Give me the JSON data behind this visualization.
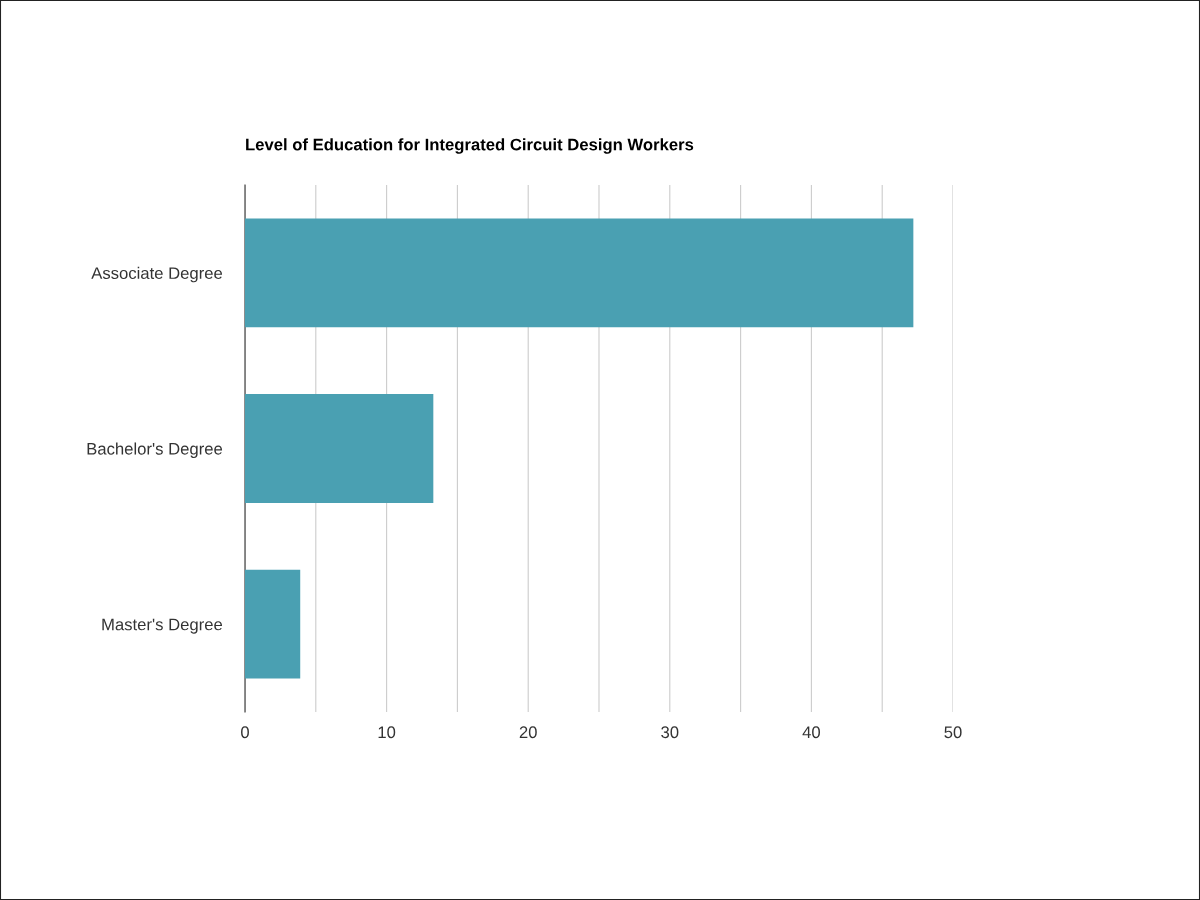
{
  "chart_data": {
    "type": "bar",
    "orientation": "horizontal",
    "title": "Level of Education for Integrated Circuit Design Workers",
    "categories": [
      "Associate Degree",
      "Bachelor's Degree",
      "Master's Degree"
    ],
    "values": [
      47.2,
      13.3,
      3.9
    ],
    "color": "#4aa0b2",
    "xlim": [
      0,
      50
    ],
    "xticks": [
      0,
      {
        "value": 5,
        "label": null
      },
      10,
      {
        "value": 15,
        "label": null
      },
      20,
      {
        "value": 25,
        "label": null
      },
      30,
      {
        "value": 35,
        "label": null
      },
      40,
      {
        "value": 45,
        "label": null
      },
      50
    ],
    "grid": "x",
    "legend": false
  }
}
